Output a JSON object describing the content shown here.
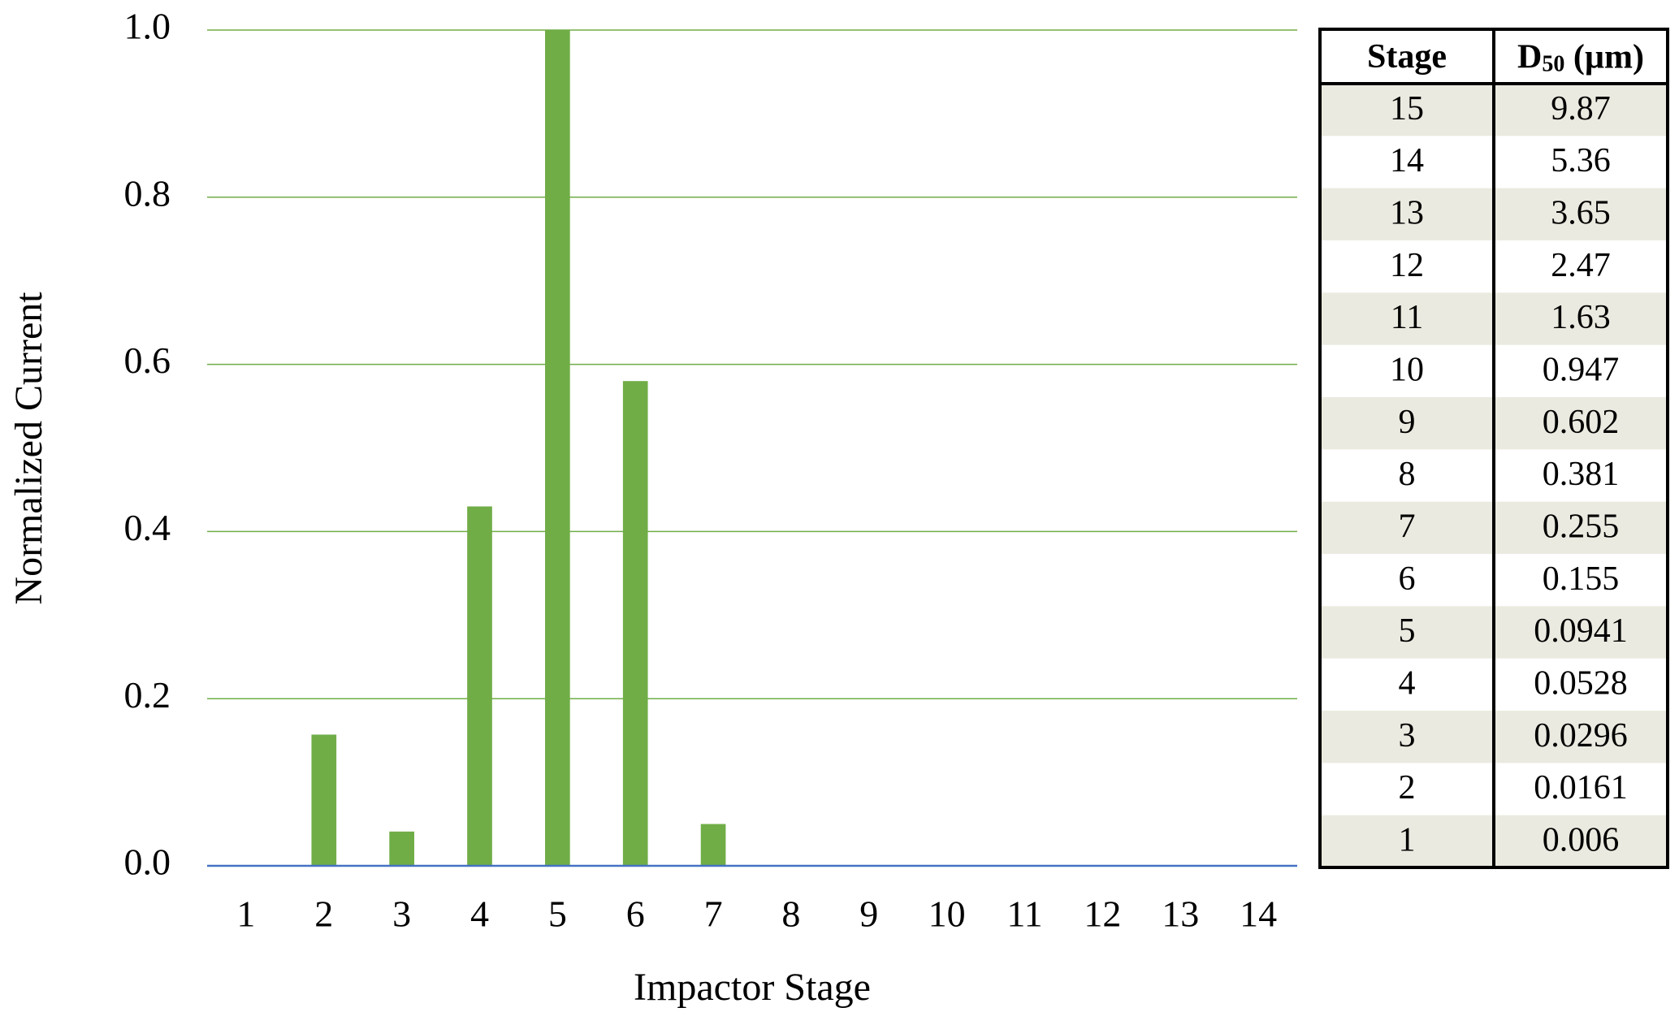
{
  "chart_data": {
    "type": "bar",
    "x_label": "Impactor Stage",
    "y_label": "Normalized  Current",
    "categories": [
      "1",
      "2",
      "3",
      "4",
      "5",
      "6",
      "7",
      "8",
      "9",
      "10",
      "11",
      "12",
      "13",
      "14"
    ],
    "values": [
      0,
      0.157,
      0.041,
      0.43,
      1.0,
      0.58,
      0.05,
      0,
      0,
      0,
      0,
      0,
      0,
      0
    ],
    "color": "#70ad47",
    "grid_color": "#70ad47",
    "baseline_color": "#4472c4",
    "ylim": [
      0,
      1.0
    ],
    "yticks": [
      {
        "value": 0,
        "label": "0.0"
      },
      {
        "value": 0.2,
        "label": "0.2"
      },
      {
        "value": 0.4,
        "label": "0.4"
      },
      {
        "value": 0.6,
        "label": "0.6"
      },
      {
        "value": 0.8,
        "label": "0.8"
      },
      {
        "value": 1.0,
        "label": "1.0"
      }
    ],
    "grid": true
  },
  "table": {
    "header": [
      "Stage",
      {
        "main": "D",
        "sub": "50",
        "unit": " (µm)"
      }
    ],
    "rows": [
      [
        "15",
        "9.87"
      ],
      [
        "14",
        "5.36"
      ],
      [
        "13",
        "3.65"
      ],
      [
        "12",
        "2.47"
      ],
      [
        "11",
        "1.63"
      ],
      [
        "10",
        "0.947"
      ],
      [
        "9",
        "0.602"
      ],
      [
        "8",
        "0.381"
      ],
      [
        "7",
        "0.255"
      ],
      [
        "6",
        "0.155"
      ],
      [
        "5",
        "0.0941"
      ],
      [
        "4",
        "0.0528"
      ],
      [
        "3",
        "0.0296"
      ],
      [
        "2",
        "0.0161"
      ],
      [
        "1",
        "0.006"
      ]
    ]
  }
}
